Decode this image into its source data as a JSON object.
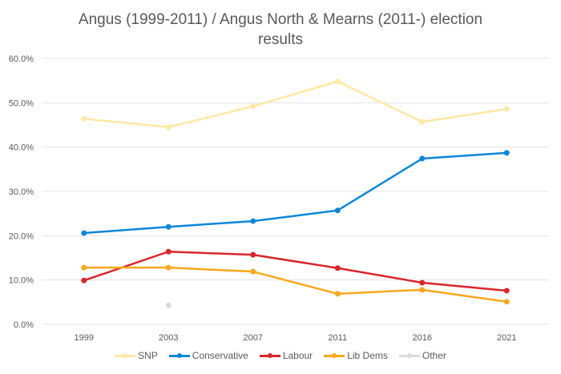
{
  "chart_data": {
    "type": "line",
    "title": "Angus (1999-2011) / Angus North & Mearns (2011-) election results",
    "title_lines": [
      "Angus (1999-2011) / Angus North & Mearns (2011-) election",
      "results"
    ],
    "xlabel": "",
    "ylabel": "",
    "categories": [
      "1999",
      "2003",
      "2007",
      "2011",
      "2016",
      "2021"
    ],
    "ylim": [
      0,
      60
    ],
    "yticks": [
      0,
      10,
      20,
      30,
      40,
      50,
      60
    ],
    "ytick_labels": [
      "0.0%",
      "10.0%",
      "20.0%",
      "30.0%",
      "40.0%",
      "50.0%",
      "60.0%"
    ],
    "grid": true,
    "legend_position": "bottom",
    "series": [
      {
        "name": "SNP",
        "color": "#fde9a3",
        "values": [
          46.4,
          44.5,
          49.2,
          54.8,
          45.7,
          48.6
        ]
      },
      {
        "name": "Conservative",
        "color": "#0a87d8",
        "values": [
          20.6,
          22.0,
          23.3,
          25.7,
          37.4,
          38.7
        ]
      },
      {
        "name": "Labour",
        "color": "#d9262a",
        "values": [
          9.9,
          16.4,
          15.7,
          12.7,
          9.4,
          7.6
        ]
      },
      {
        "name": "Lib Dems",
        "color": "#f8a81c",
        "values": [
          12.8,
          12.8,
          11.9,
          6.9,
          7.8,
          5.1
        ]
      },
      {
        "name": "Other",
        "color": "#d9d9d9",
        "values": [
          null,
          4.3,
          null,
          null,
          null,
          null
        ]
      }
    ]
  }
}
